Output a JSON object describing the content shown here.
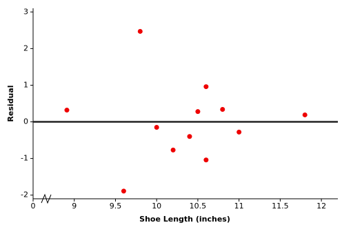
{
  "chart_data": {
    "type": "scatter",
    "xlabel": "Shoe Length (inches)",
    "ylabel": "Residual",
    "x": [
      8.91,
      9.6,
      9.8,
      10.0,
      10.2,
      10.4,
      10.5,
      10.6,
      10.6,
      10.8,
      11.0,
      11.8
    ],
    "values": [
      0.32,
      -1.89,
      2.47,
      -0.15,
      -0.77,
      -0.4,
      0.28,
      0.96,
      -1.04,
      0.34,
      -0.28,
      0.19
    ],
    "color": "#ee0000",
    "xlim": [
      8.5,
      12.2
    ],
    "xticks": [
      0,
      9,
      9.5,
      10,
      10.5,
      11,
      11.5,
      12
    ],
    "ylim": [
      -2.1,
      3.1
    ],
    "yticks": [
      -2,
      -1,
      0,
      1,
      2,
      3
    ],
    "axis_break": true,
    "reference_line": 0
  }
}
